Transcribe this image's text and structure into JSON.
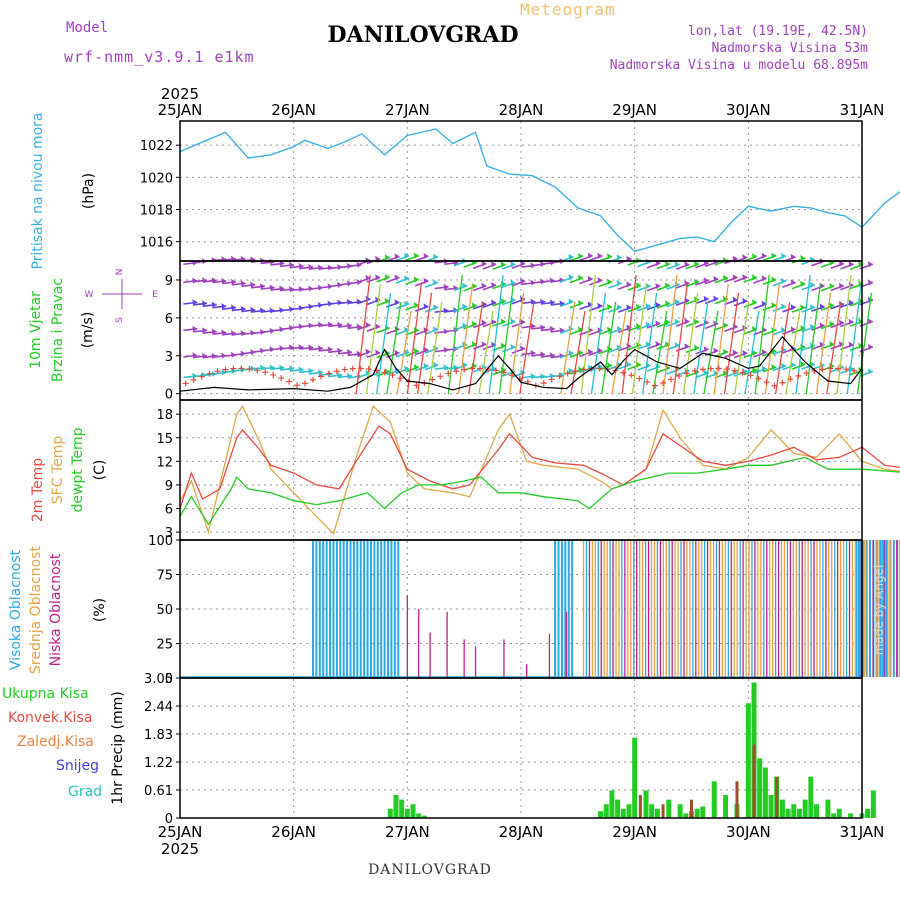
{
  "header": {
    "title": "DANILOVGRAD",
    "meteogram_label": "Meteogram",
    "model_label": "Model",
    "model_name": "wrf-nmm_v3.9.1 e1km",
    "location_lines": [
      "lon,lat (19.19E, 42.5N)",
      "Nadmorska Visina 53m",
      "Nadmorska Visina u modelu 68.895m"
    ],
    "footer": "DANILOVGRAD",
    "made_by": "made by Angel"
  },
  "colors": {
    "pressure": "#3ab0e8",
    "wind_green": "#22cc22",
    "wind_purple": "#a040c0",
    "temp_2m": "#e84a40",
    "temp_sfc": "#e0a848",
    "dewpoint": "#22cc22",
    "cloud_high": "#2aa8e8",
    "cloud_mid": "#e8a040",
    "cloud_low": "#c0208a",
    "rain_total": "#22cc22",
    "rain_conv": "#e84a40",
    "rain_frozen": "#f08040",
    "snow": "#4040e0",
    "hail": "#20c0c0"
  },
  "chart_data": [
    {
      "type": "line",
      "panel": "pressure",
      "year": "2025",
      "x_labels": [
        "25JAN",
        "26JAN",
        "27JAN",
        "28JAN",
        "29JAN",
        "30JAN",
        "31JAN"
      ],
      "ylabel_main": "Pritisak na nivou mora",
      "ylabel_unit": "(hPa)",
      "ylim": [
        1014.8,
        1023.5
      ],
      "yticks": [
        "1016",
        "1018",
        "1020",
        "1022"
      ],
      "grid": true,
      "series": [
        {
          "values": [
            1021.6,
            1021.9,
            1022.8,
            1021.2,
            1021.4,
            1021.9,
            1022.3,
            1021.8,
            1022.2,
            1022.7,
            1021.4,
            1022.6,
            1023.0,
            1022.1,
            1022.8,
            1020.7,
            1020.2,
            1020.1,
            1019.4,
            1018.1,
            1017.6,
            1016.4,
            1015.4,
            1015.8,
            1016.2,
            1016.3,
            1016.0,
            1017.2,
            1018.2,
            1017.9,
            1018.2,
            1018.1,
            1017.8,
            1017.6,
            1016.9,
            1018.4,
            1019.7
          ],
          "x_days": [
            0,
            0.1,
            0.4,
            0.6,
            0.8,
            1.0,
            1.1,
            1.3,
            1.45,
            1.6,
            1.8,
            2.0,
            2.25,
            2.4,
            2.6,
            2.7,
            2.9,
            3.1,
            3.3,
            3.5,
            3.7,
            3.85,
            4.0,
            4.2,
            4.4,
            4.55,
            4.7,
            4.85,
            5.0,
            5.2,
            5.4,
            5.55,
            5.7,
            5.85,
            6.0,
            6.2,
            6.45
          ]
        }
      ]
    },
    {
      "type": "scatter",
      "panel": "wind",
      "ylabel_main": "10m Vjetar",
      "ylabel_sub": "Brzina i Pravac",
      "ylabel_unit": "(m/s)",
      "compass_labels": [
        "N",
        "W",
        "E",
        "S"
      ],
      "ylim": [
        -0.5,
        10.5
      ],
      "yticks": [
        "0",
        "3",
        "6",
        "9"
      ],
      "series": [
        {
          "name": "speed",
          "x_days": [
            0,
            0.3,
            0.6,
            1.0,
            1.3,
            1.5,
            1.7,
            1.8,
            1.9,
            2.0,
            2.2,
            2.4,
            2.6,
            2.8,
            2.9,
            3.0,
            3.2,
            3.4,
            3.5,
            3.7,
            3.8,
            3.9,
            4.0,
            4.2,
            4.4,
            4.6,
            4.8,
            5.0,
            5.1,
            5.3,
            5.5,
            5.7,
            5.9,
            6.0
          ],
          "values": [
            0.2,
            0.5,
            0.3,
            0.4,
            0.2,
            0.5,
            1.5,
            3.5,
            2.0,
            1.0,
            0.8,
            0.3,
            0.8,
            3.0,
            2.0,
            0.9,
            0.5,
            0.4,
            1.2,
            2.5,
            1.5,
            2.6,
            3.5,
            2.5,
            2.0,
            3.2,
            2.8,
            2.0,
            2.2,
            4.5,
            2.5,
            1.0,
            0.8,
            2.0
          ]
        }
      ]
    },
    {
      "type": "line",
      "panel": "temperature",
      "ylabel_series": [
        "2m Temp",
        "SFC Temp",
        "dewpt Temp"
      ],
      "ylabel_unit": "(C)",
      "ylim": [
        2,
        19.8
      ],
      "yticks": [
        "3",
        "6",
        "9",
        "12",
        "15",
        "18"
      ],
      "series": [
        {
          "name": "2m Temp",
          "x_days": [
            0,
            0.1,
            0.2,
            0.35,
            0.5,
            0.55,
            0.7,
            0.8,
            1.0,
            1.2,
            1.4,
            1.55,
            1.75,
            1.85,
            2.0,
            2.2,
            2.4,
            2.55,
            2.8,
            2.9,
            3.1,
            3.3,
            3.55,
            3.7,
            3.9,
            4.1,
            4.25,
            4.4,
            4.6,
            4.8,
            5.0,
            5.2,
            5.4,
            5.6,
            5.8,
            6.0,
            6.2,
            6.45
          ],
          "values": [
            6.0,
            10.5,
            7.2,
            8.5,
            15.0,
            16.0,
            13.5,
            11.5,
            10.5,
            9.0,
            8.5,
            12.0,
            16.5,
            15.5,
            11.0,
            9.5,
            8.5,
            9.0,
            13.5,
            15.5,
            12.5,
            11.8,
            11.5,
            10.5,
            9.0,
            11.0,
            15.5,
            14.0,
            12.0,
            11.5,
            12.0,
            12.8,
            13.8,
            12.2,
            12.5,
            13.8,
            11.5,
            11.0
          ]
        },
        {
          "name": "SFC Temp",
          "x_days": [
            0,
            0.1,
            0.25,
            0.4,
            0.5,
            0.55,
            0.7,
            0.8,
            1.0,
            1.2,
            1.35,
            1.55,
            1.7,
            1.85,
            2.0,
            2.15,
            2.4,
            2.55,
            2.8,
            2.9,
            3.05,
            3.2,
            3.5,
            3.7,
            3.8,
            3.9,
            4.1,
            4.25,
            4.4,
            4.6,
            4.8,
            5.0,
            5.2,
            5.4,
            5.6,
            5.8,
            6.0,
            6.2,
            6.45
          ],
          "values": [
            7.0,
            9.5,
            3.0,
            12.0,
            18.0,
            19.0,
            14.5,
            11.0,
            8.0,
            5.0,
            2.8,
            12.5,
            19.0,
            17.0,
            10.5,
            8.5,
            8.0,
            7.5,
            16.0,
            18.0,
            12.0,
            11.5,
            11.0,
            9.5,
            8.5,
            9.0,
            11.0,
            18.5,
            15.0,
            11.5,
            11.0,
            12.5,
            16.0,
            13.0,
            12.5,
            15.5,
            12.0,
            11.0,
            10.5
          ]
        },
        {
          "name": "dewpt Temp",
          "x_days": [
            0,
            0.1,
            0.25,
            0.45,
            0.5,
            0.6,
            0.8,
            1.0,
            1.2,
            1.4,
            1.65,
            1.8,
            1.95,
            2.1,
            2.3,
            2.5,
            2.65,
            2.8,
            3.0,
            3.2,
            3.5,
            3.6,
            3.8,
            4.0,
            4.3,
            4.55,
            4.8,
            5.0,
            5.2,
            5.5,
            5.7,
            6.0,
            6.45
          ],
          "values": [
            5.0,
            7.5,
            4.0,
            8.5,
            10.0,
            8.5,
            8.0,
            7.0,
            6.5,
            7.0,
            8.0,
            6.0,
            8.0,
            9.0,
            9.0,
            9.5,
            10.0,
            8.0,
            8.0,
            7.5,
            7.0,
            6.0,
            8.5,
            9.5,
            10.5,
            10.5,
            11.0,
            11.5,
            11.5,
            12.5,
            11.0,
            11.0,
            10.5
          ]
        }
      ]
    },
    {
      "type": "bar",
      "panel": "clouds",
      "ylabel_series": [
        "Visoka Oblacnost",
        "Srednja Oblacnost",
        "Niska Oblacnost"
      ],
      "ylabel_unit": "(%)",
      "ylim": [
        0,
        100
      ],
      "yticks": [
        "0",
        "25",
        "50",
        "75",
        "100"
      ],
      "series": [
        {
          "name": "Visoka Oblacnost",
          "x_ranges": [
            [
              1.17,
              1.95
            ],
            [
              3.3,
              3.45
            ],
            [
              5.95,
              6.35
            ]
          ],
          "value": 100
        },
        {
          "name": "Srednja Oblacnost",
          "x_ranges": [
            [
              3.55,
              6.45
            ]
          ],
          "value": 100
        },
        {
          "name": "Niska Oblacnost",
          "spikes_x": [
            2.0,
            2.1,
            2.2,
            2.35,
            2.5,
            2.6,
            2.85,
            3.05,
            3.25,
            3.4
          ],
          "spikes_v": [
            60,
            50,
            33,
            48,
            28,
            23,
            28,
            10,
            32,
            48
          ]
        }
      ]
    },
    {
      "type": "bar",
      "panel": "precip",
      "ylabel_series": [
        "Ukupna Kisa",
        "Konvek.Kisa",
        "Zaledj.Kisa",
        "Snijeg",
        "Grad"
      ],
      "ylabel_unit": "1hr Precip (mm)",
      "ylim": [
        0,
        3.05
      ],
      "yticks": [
        "0",
        "0.61",
        "1.22",
        "1.83",
        "2.44",
        "3.05"
      ],
      "series": [
        {
          "name": "Ukupna Kisa",
          "x_days": [
            1.85,
            1.9,
            1.95,
            2.0,
            2.05,
            2.1,
            2.15,
            3.7,
            3.75,
            3.8,
            3.85,
            3.9,
            3.95,
            4.0,
            4.1,
            4.15,
            4.2,
            4.3,
            4.4,
            4.45,
            4.5,
            4.55,
            4.6,
            4.7,
            4.8,
            4.9,
            5.0,
            5.05,
            5.1,
            5.15,
            5.2,
            5.25,
            5.3,
            5.35,
            5.4,
            5.45,
            5.5,
            5.55,
            5.6,
            5.7,
            5.75,
            5.8,
            5.9,
            6.0,
            6.05,
            6.1
          ],
          "values": [
            0.2,
            0.5,
            0.4,
            0.2,
            0.3,
            0.1,
            0.05,
            0.15,
            0.3,
            0.6,
            0.4,
            0.2,
            0.3,
            1.75,
            0.6,
            0.3,
            0.2,
            0.4,
            0.3,
            0.1,
            0.15,
            0.2,
            0.25,
            0.8,
            0.5,
            0.3,
            2.5,
            2.95,
            1.3,
            1.1,
            0.5,
            0.9,
            0.4,
            0.2,
            0.3,
            0.2,
            0.4,
            0.9,
            0.3,
            0.4,
            0.1,
            0.2,
            0.1,
            0.1,
            0.2,
            0.6
          ]
        },
        {
          "name": "Konvek.Kisa",
          "x_days": [
            4.05,
            4.25,
            4.5,
            4.9,
            5.05,
            5.25
          ],
          "values": [
            0.5,
            0.3,
            0.4,
            0.8,
            1.6,
            0.9
          ]
        }
      ]
    }
  ]
}
